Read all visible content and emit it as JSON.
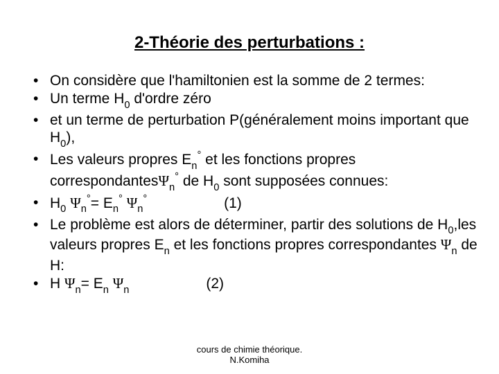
{
  "title": "2-Théorie des perturbations :",
  "bullets": {
    "b1": "On considère que l'hamiltonien est la somme de 2 termes:",
    "b2": {
      "pre": "Un terme H",
      "sub": "0",
      "post": " d'ordre zéro"
    },
    "b3": {
      "pre": "et un terme de perturbation P(généralement moins important que H",
      "sub": "0",
      "post": "),"
    },
    "b4": {
      "p1": "Les valeurs propres E",
      "s1sub": "n",
      "s1sup": "°",
      "p2": " et les fonctions propres correspondantes",
      "psi1": "Ψ",
      "s2sub": "n",
      "s2sup": "°",
      "p3": " de H",
      "s3sub": "0",
      "p4": " sont supposées connues:"
    },
    "b5": {
      "sp1": " H",
      "h0sub": "0",
      "sp2": " ",
      "psi1": "Ψ",
      "n1sub": "n",
      "n1sup": "°",
      "eq1": "= E",
      "e1sub": "n",
      "e1sup": "°",
      "sp3": " ",
      "psi2": "Ψ",
      "n2sub": "n",
      "n2sup": "°",
      "tail": "                   (1)"
    },
    "b6": {
      "p1": "Le problème est alors de déterminer, partir des solutions de H",
      "s1sub": "0",
      "p2": ",les valeurs propres E",
      "s2sub": "n",
      "p3": " et les fonctions propres correspondantes ",
      "psi": "Ψ",
      "s3sub": "n",
      "p4": " de H:"
    },
    "b7": {
      "p1": "H ",
      "psi1": "Ψ",
      "n1sub": "n",
      "eq": "= E",
      "e1sub": "n",
      "sp": " ",
      "psi2": "Ψ",
      "n2sub": "n",
      "tail": "                   (2)"
    }
  },
  "footer": {
    "line1": "cours de chimie théorique.",
    "line2": "N.Komiha"
  },
  "style": {
    "background": "#ffffff",
    "text_color": "#000000",
    "title_fontsize": 24,
    "body_fontsize": 21,
    "footer_fontsize": 13
  }
}
